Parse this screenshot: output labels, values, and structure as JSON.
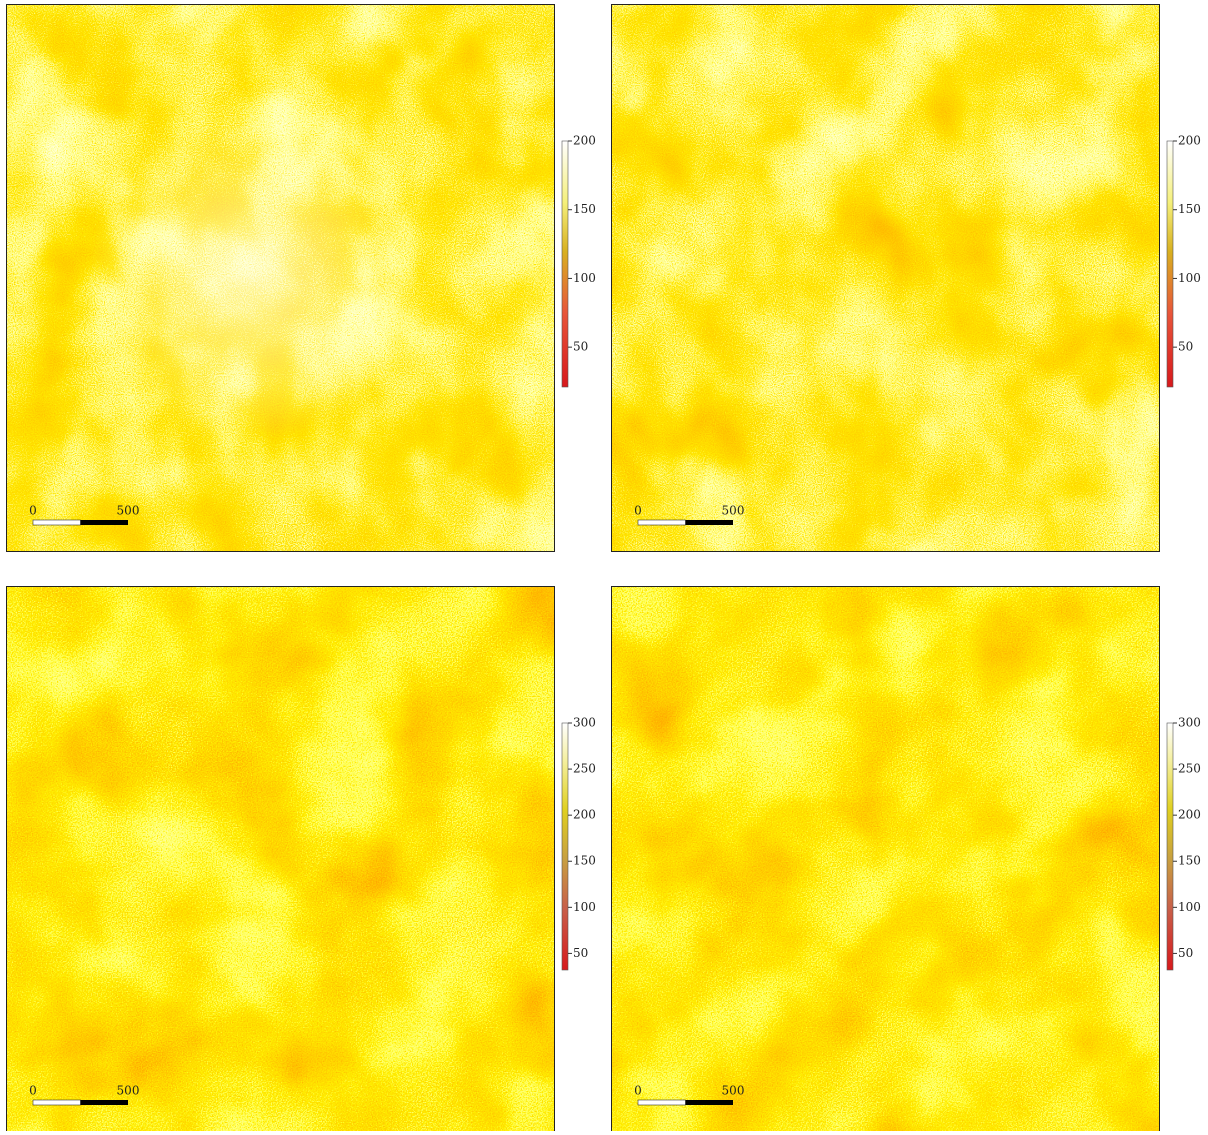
{
  "panels": [
    {
      "colorbar": {
        "lim": [
          21,
          200
        ],
        "ticks": [
          50,
          100,
          150,
          200
        ]
      },
      "scalebar": {
        "lim": [
          0,
          500
        ],
        "ticks": [
          0,
          500
        ]
      }
    },
    {
      "colorbar": {
        "lim": [
          21,
          200
        ],
        "ticks": [
          50,
          100,
          150,
          200
        ]
      },
      "scalebar": {
        "lim": [
          0,
          500
        ],
        "ticks": [
          0,
          500
        ]
      }
    },
    {
      "colorbar": {
        "lim": [
          32,
          300
        ],
        "ticks": [
          50,
          100,
          150,
          200,
          250,
          300
        ]
      },
      "scalebar": {
        "lim": [
          0,
          500
        ],
        "ticks": [
          0,
          500
        ]
      }
    },
    {
      "colorbar": {
        "lim": [
          32,
          300
        ],
        "ticks": [
          50,
          100,
          150,
          200,
          250,
          300
        ]
      },
      "scalebar": {
        "lim": [
          0,
          500
        ],
        "ticks": [
          0,
          500
        ]
      }
    }
  ]
}
